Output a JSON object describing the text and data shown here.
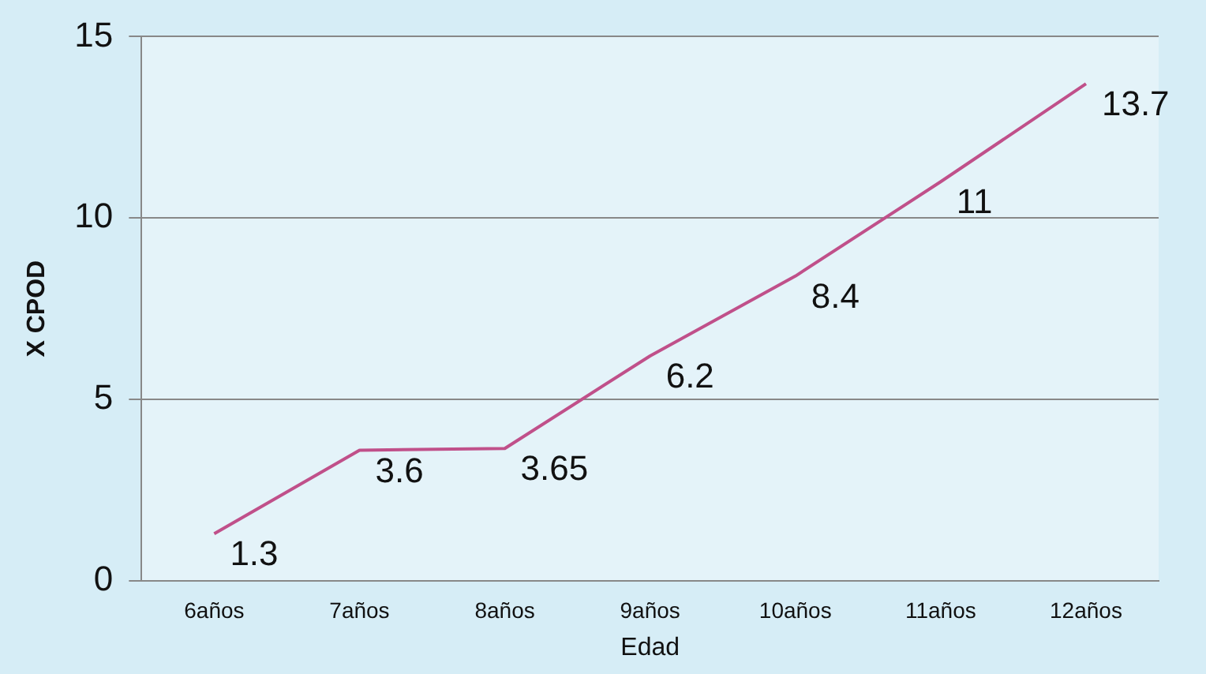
{
  "chart_data": {
    "type": "line",
    "xlabel": "Edad",
    "ylabel": "X CPOD",
    "categories": [
      "6años",
      "7años",
      "8años",
      "9años",
      "10años",
      "11años",
      "12años"
    ],
    "series": [
      {
        "color": "#c0508a",
        "values": [
          1.3,
          3.6,
          3.65,
          6.2,
          8.4,
          11,
          13.7
        ]
      }
    ],
    "ylim": [
      0,
      15
    ],
    "yticks": [
      0,
      5,
      10,
      15
    ],
    "grid": "y",
    "legend": false,
    "marker": "none",
    "data_labels": true
  }
}
